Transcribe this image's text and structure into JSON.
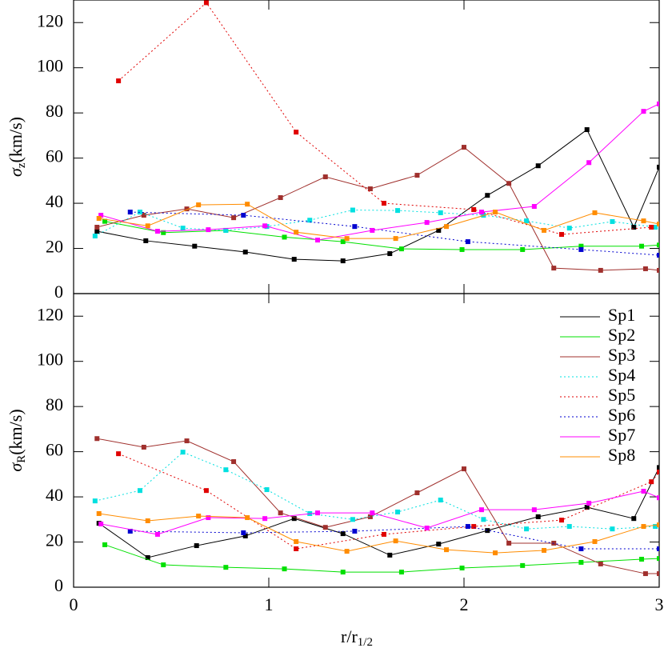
{
  "chart_data": [
    {
      "type": "line",
      "ylabel": {
        "symbol": "σ",
        "sub": "z",
        "unit": "(km/s)"
      },
      "xlim": [
        0,
        3
      ],
      "ylim": [
        0,
        130
      ],
      "xticks": [
        0,
        1,
        2,
        3
      ],
      "yticks": [
        0,
        20,
        40,
        60,
        80,
        100,
        120
      ],
      "show_xtick_labels": false,
      "series": [
        {
          "color": "#000000",
          "style": "solid",
          "x": [
            0.12,
            0.37,
            0.62,
            0.88,
            1.13,
            1.38,
            1.62,
            1.87,
            2.12,
            2.38,
            2.63,
            2.87,
            3.0
          ],
          "values": [
            27.6,
            23.4,
            21,
            18.4,
            15.2,
            14.5,
            17.7,
            28,
            43.5,
            56.6,
            72.6,
            29.4,
            56
          ]
        },
        {
          "color": "#00e000",
          "style": "solid",
          "x": [
            0.16,
            0.46,
            0.78,
            1.08,
            1.38,
            1.68,
            1.99,
            2.3,
            2.6,
            2.91,
            3.0
          ],
          "values": [
            32,
            27,
            28,
            25,
            23,
            19.8,
            19.5,
            19.5,
            21,
            21,
            21.5
          ]
        },
        {
          "color": "#a0302d",
          "style": "solid",
          "x": [
            0.12,
            0.36,
            0.58,
            0.82,
            1.06,
            1.29,
            1.52,
            1.76,
            2.0,
            2.23,
            2.46,
            2.7,
            2.93,
            3.0
          ],
          "values": [
            29.4,
            34.7,
            37.5,
            33.6,
            42.5,
            51.7,
            46.4,
            52.4,
            64.8,
            48.8,
            11.3,
            10.3,
            11,
            10.3
          ]
        },
        {
          "color": "#00e0e0",
          "style": "dotted",
          "x": [
            0.11,
            0.34,
            0.56,
            0.78,
            0.99,
            1.21,
            1.43,
            1.66,
            1.88,
            2.1,
            2.32,
            2.54,
            2.76,
            2.98
          ],
          "values": [
            25.5,
            36.1,
            29,
            28,
            29.7,
            32.5,
            37,
            36.8,
            35.8,
            34.7,
            32.2,
            29,
            31.9,
            29.4
          ]
        },
        {
          "color": "#e00000",
          "style": "dotted",
          "x": [
            0.23,
            0.68,
            1.14,
            1.59,
            2.05,
            2.5,
            2.96
          ],
          "values": [
            94.2,
            128.8,
            71.5,
            40,
            37.2,
            26.2,
            29.4
          ]
        },
        {
          "color": "#0000d0",
          "style": "dotted",
          "x": [
            0.29,
            0.87,
            1.44,
            2.02,
            2.6,
            3.0
          ],
          "values": [
            36.1,
            34.7,
            29.7,
            23,
            19.5,
            17
          ]
        },
        {
          "color": "#ff00ff",
          "style": "solid",
          "x": [
            0.14,
            0.43,
            0.69,
            0.98,
            1.25,
            1.53,
            1.81,
            2.09,
            2.36,
            2.64,
            2.92,
            3.0
          ],
          "values": [
            34.7,
            27.6,
            28.3,
            30,
            23.7,
            28,
            31.5,
            36.1,
            38.6,
            58,
            80.7,
            84
          ]
        },
        {
          "color": "#ff8c00",
          "style": "solid",
          "x": [
            0.13,
            0.38,
            0.64,
            0.89,
            1.14,
            1.4,
            1.65,
            1.91,
            2.16,
            2.41,
            2.67,
            2.92,
            3.0
          ],
          "values": [
            33.3,
            30,
            39.3,
            39.6,
            27.2,
            24.4,
            24.4,
            29.7,
            36.1,
            28,
            35.8,
            32.2,
            30.8
          ]
        }
      ]
    },
    {
      "type": "line",
      "ylabel": {
        "symbol": "σ",
        "sub": "R",
        "unit": "(km/s)"
      },
      "xlabel": {
        "main": "r/r",
        "sub": "1/2"
      },
      "xlim": [
        0,
        3
      ],
      "ylim": [
        0,
        130
      ],
      "xticks": [
        0,
        1,
        2,
        3
      ],
      "yticks": [
        0,
        20,
        40,
        60,
        80,
        100,
        120
      ],
      "show_xtick_labels": true,
      "legend": "upper right",
      "series": [
        {
          "name": "Sp1",
          "color": "#000000",
          "style": "solid",
          "x": [
            0.13,
            0.38,
            0.63,
            0.88,
            1.13,
            1.38,
            1.62,
            1.87,
            2.12,
            2.38,
            2.63,
            2.87,
            3.0
          ],
          "values": [
            28.3,
            13.1,
            18.4,
            22.7,
            30.4,
            23.7,
            14.2,
            19.1,
            25.1,
            31.2,
            35.4,
            30.4,
            53
          ]
        },
        {
          "name": "Sp2",
          "color": "#00e000",
          "style": "solid",
          "x": [
            0.16,
            0.46,
            0.78,
            1.08,
            1.38,
            1.68,
            1.99,
            2.3,
            2.6,
            2.91,
            3.0
          ],
          "values": [
            18.8,
            9.9,
            8.8,
            8.1,
            6.7,
            6.7,
            8.5,
            9.6,
            11,
            12.4,
            12.7
          ]
        },
        {
          "name": "Sp3",
          "color": "#a0302d",
          "style": "solid",
          "x": [
            0.12,
            0.36,
            0.58,
            0.82,
            1.06,
            1.29,
            1.52,
            1.76,
            2.0,
            2.23,
            2.46,
            2.7,
            2.93,
            3.0
          ],
          "values": [
            65.8,
            62,
            64.8,
            55.6,
            32.9,
            26.5,
            31.2,
            41.8,
            52.4,
            19.5,
            19.5,
            10.3,
            6,
            6
          ]
        },
        {
          "name": "Sp4",
          "color": "#00e0e0",
          "style": "dotted",
          "x": [
            0.11,
            0.34,
            0.56,
            0.78,
            0.99,
            1.21,
            1.43,
            1.66,
            1.88,
            2.1,
            2.32,
            2.54,
            2.76,
            2.98
          ],
          "values": [
            38.2,
            42.8,
            59.8,
            52,
            43.2,
            32.6,
            30,
            33.3,
            38.6,
            30,
            25.8,
            26.9,
            25.8,
            26.9
          ]
        },
        {
          "name": "Sp5",
          "color": "#e00000",
          "style": "dotted",
          "x": [
            0.23,
            0.68,
            1.14,
            1.59,
            2.05,
            2.5,
            2.96,
            3.0
          ],
          "values": [
            59.1,
            42.8,
            17,
            23.4,
            26.9,
            29.7,
            46.7,
            51
          ]
        },
        {
          "name": "Sp6",
          "color": "#0000d0",
          "style": "dotted",
          "x": [
            0.29,
            0.87,
            1.44,
            2.02,
            2.6,
            3.0
          ],
          "values": [
            24.8,
            24.1,
            24.8,
            26.9,
            17,
            17
          ]
        },
        {
          "name": "Sp7",
          "color": "#ff00ff",
          "style": "solid",
          "x": [
            0.14,
            0.43,
            0.69,
            0.98,
            1.25,
            1.53,
            1.81,
            2.09,
            2.36,
            2.64,
            2.92,
            3.0
          ],
          "values": [
            28,
            23.4,
            30.8,
            30.4,
            32.9,
            32.9,
            26.2,
            34.3,
            34.3,
            37.2,
            42.5,
            39.6
          ]
        },
        {
          "name": "Sp8",
          "color": "#ff8c00",
          "style": "solid",
          "x": [
            0.13,
            0.38,
            0.64,
            0.89,
            1.14,
            1.4,
            1.65,
            1.91,
            2.16,
            2.41,
            2.67,
            2.92,
            3.0
          ],
          "values": [
            32.6,
            29.4,
            31.5,
            30.8,
            20.2,
            15.9,
            20.5,
            16.6,
            15.2,
            16.3,
            20.2,
            26.9,
            27.6
          ]
        }
      ]
    }
  ]
}
